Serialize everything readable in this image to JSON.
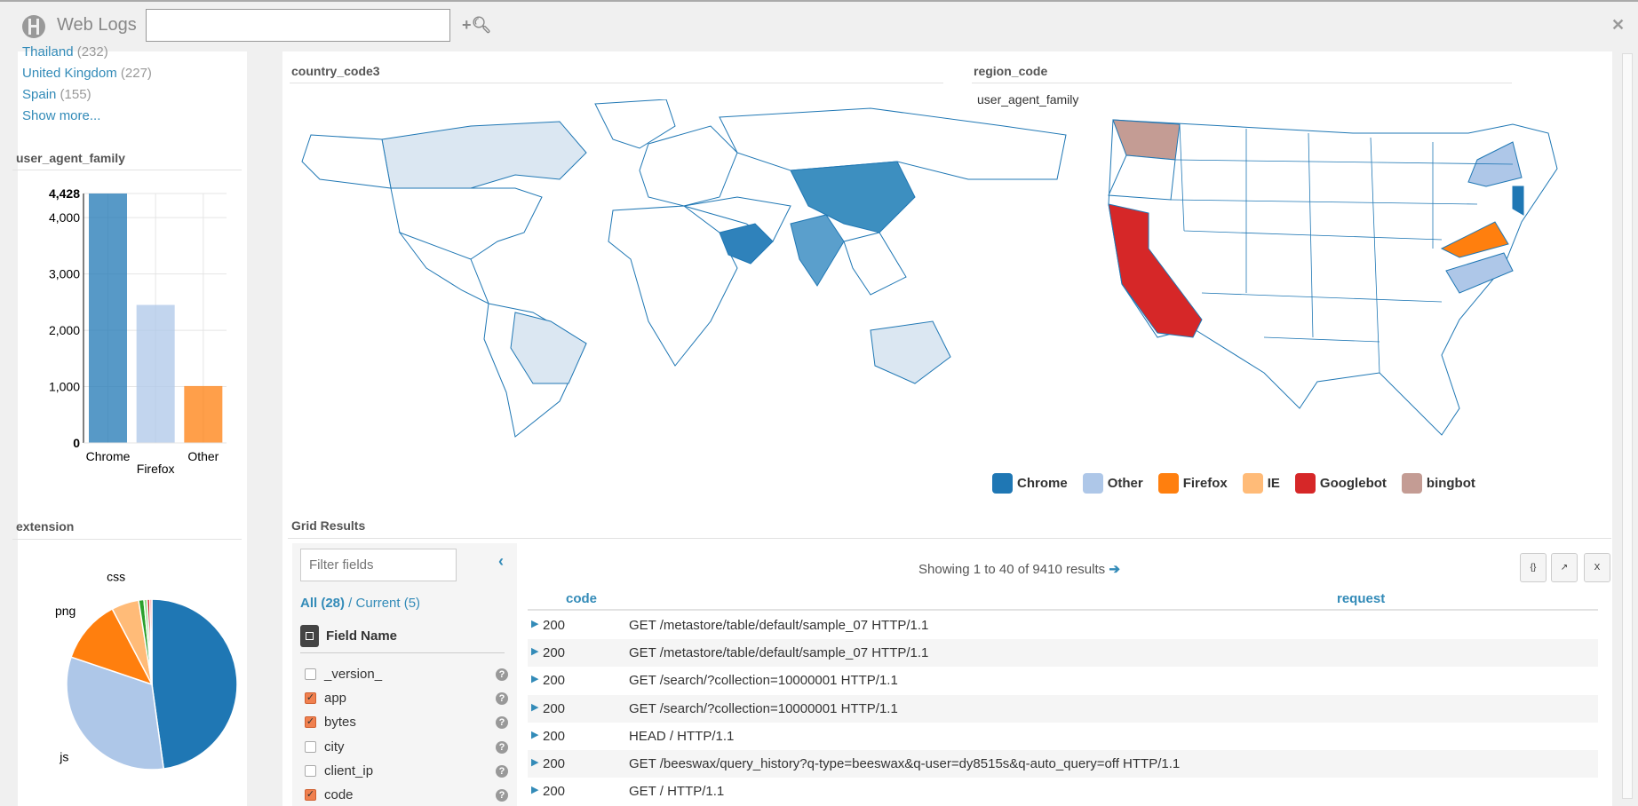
{
  "header": {
    "title": "Web Logs",
    "search_value": "",
    "search_icon": "plus-search-icon",
    "close_icon": "close-icon"
  },
  "sidebar": {
    "facets": [
      {
        "label": "Thailand",
        "count": "(232)"
      },
      {
        "label": "United Kingdom",
        "count": "(227)"
      },
      {
        "label": "Spain",
        "count": "(155)"
      }
    ],
    "show_more": "Show more...",
    "bar_title": "user_agent_family",
    "pie_title": "extension"
  },
  "chart_data": [
    {
      "type": "bar",
      "title": "user_agent_family",
      "categories": [
        "Chrome",
        "Firefox",
        "Other"
      ],
      "values": [
        4428,
        2450,
        1010
      ],
      "colors": [
        "#1f77b4",
        "#aec7e8",
        "#ff7f0e"
      ],
      "yticks": [
        "0",
        "1,000",
        "2,000",
        "3,000",
        "4,000",
        "4,428"
      ],
      "ylim": [
        0,
        4428
      ],
      "grid": true
    },
    {
      "type": "pie",
      "title": "extension",
      "labels": [
        "",
        "js",
        "png",
        "css",
        "",
        "",
        "",
        ""
      ],
      "values": [
        47.8,
        32.4,
        12.1,
        5.2,
        1.0,
        0.6,
        0.5,
        0.4
      ],
      "colors": [
        "#1f77b4",
        "#aec7e8",
        "#ff7f0e",
        "#ffbb78",
        "#2ca02c",
        "#98df8a",
        "#d62728",
        "#ff9896"
      ]
    }
  ],
  "maps": {
    "world_title": "country_code3",
    "us_title": "region_code",
    "us_subtitle": "user_agent_family",
    "legend": [
      {
        "label": "Chrome",
        "color": "#1f77b4"
      },
      {
        "label": "Other",
        "color": "#aec7e8"
      },
      {
        "label": "Firefox",
        "color": "#ff7f0e"
      },
      {
        "label": "IE",
        "color": "#ffbb78"
      },
      {
        "label": "Googlebot",
        "color": "#d62728"
      },
      {
        "label": "bingbot",
        "color": "#c49c94"
      }
    ]
  },
  "grid": {
    "title": "Grid Results",
    "filter_placeholder": "Filter fields",
    "all_label": "All (28)",
    "sep": " / ",
    "current_label": "Current (5)",
    "field_header": "Field Name",
    "fields": [
      {
        "name": "_version_",
        "checked": false
      },
      {
        "name": "app",
        "checked": true
      },
      {
        "name": "bytes",
        "checked": true
      },
      {
        "name": "city",
        "checked": false
      },
      {
        "name": "client_ip",
        "checked": false
      },
      {
        "name": "code",
        "checked": true
      }
    ],
    "showing": "Showing 1 to 40 of 9410 results",
    "columns": [
      "code",
      "request"
    ],
    "rows": [
      {
        "code": "200",
        "request": "GET /metastore/table/default/sample_07 HTTP/1.1"
      },
      {
        "code": "200",
        "request": "GET /metastore/table/default/sample_07 HTTP/1.1"
      },
      {
        "code": "200",
        "request": "GET /search/?collection=10000001 HTTP/1.1"
      },
      {
        "code": "200",
        "request": "GET /search/?collection=10000001 HTTP/1.1"
      },
      {
        "code": "200",
        "request": "HEAD / HTTP/1.1"
      },
      {
        "code": "200",
        "request": "GET /beeswax/query_history?q-type=beeswax&q-user=dy8515s&q-auto_query=off HTTP/1.1"
      },
      {
        "code": "200",
        "request": "GET / HTTP/1.1"
      }
    ],
    "download_icons": [
      "json-file-icon",
      "csv-file-icon",
      "excel-file-icon"
    ],
    "download_labels": [
      "{}",
      "↗",
      "X"
    ]
  }
}
